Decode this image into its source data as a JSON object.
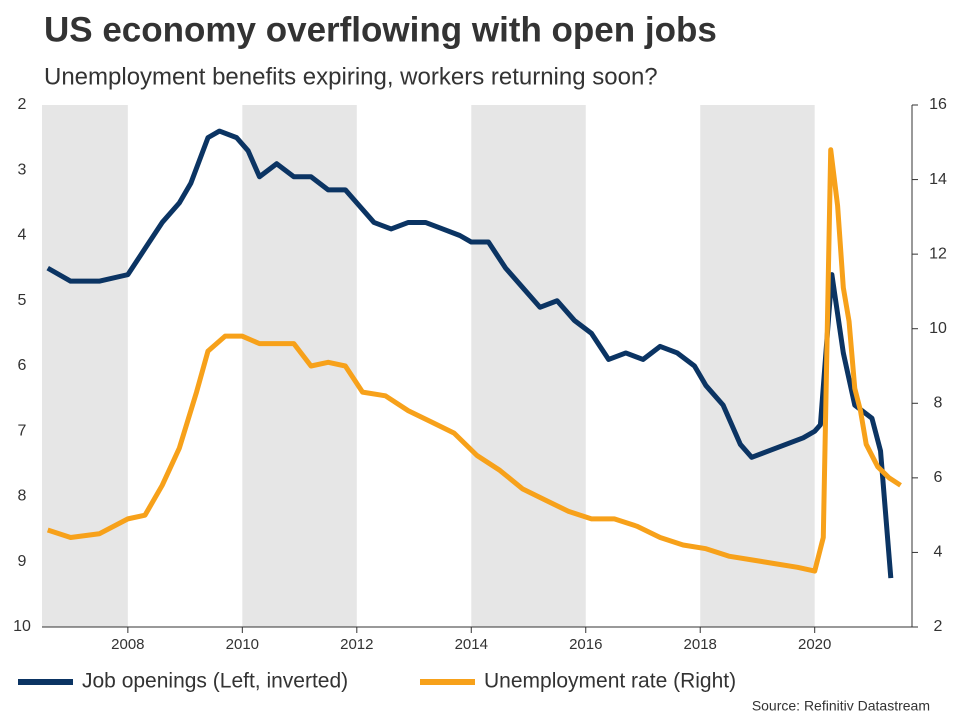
{
  "chart_data": {
    "type": "line",
    "title": "US economy overflowing with open jobs",
    "subtitle": "Unemployment benefits expiring, workers returning soon?",
    "source": "Source: Refinitiv Datastream",
    "xlim": [
      2006.5,
      2021.7
    ],
    "xticks": [
      2008,
      2010,
      2012,
      2014,
      2016,
      2018,
      2020
    ],
    "ylim": [
      10,
      2
    ],
    "yticks": [
      2,
      3,
      4,
      5,
      6,
      7,
      8,
      9,
      10
    ],
    "y2lim": [
      2,
      16
    ],
    "y2ticks": [
      2,
      4,
      6,
      8,
      10,
      12,
      14,
      16
    ],
    "series": [
      {
        "name": "Job openings (Left, inverted)",
        "color": "#0b3463",
        "axis": "y",
        "x": [
          2006.6,
          2007.0,
          2007.5,
          2008.0,
          2008.3,
          2008.6,
          2008.9,
          2009.1,
          2009.4,
          2009.6,
          2009.9,
          2010.1,
          2010.3,
          2010.6,
          2010.9,
          2011.2,
          2011.5,
          2011.8,
          2012.0,
          2012.3,
          2012.6,
          2012.9,
          2013.2,
          2013.5,
          2013.8,
          2014.0,
          2014.3,
          2014.6,
          2014.9,
          2015.2,
          2015.5,
          2015.8,
          2016.1,
          2016.4,
          2016.7,
          2017.0,
          2017.3,
          2017.6,
          2017.9,
          2018.1,
          2018.4,
          2018.7,
          2018.9,
          2019.2,
          2019.5,
          2019.8,
          2020.0,
          2020.1,
          2020.3,
          2020.5,
          2020.7,
          2021.0,
          2021.15,
          2021.33
        ],
        "values": [
          4.5,
          4.7,
          4.7,
          4.6,
          4.2,
          3.8,
          3.5,
          3.2,
          2.5,
          2.4,
          2.5,
          2.7,
          3.1,
          2.9,
          3.1,
          3.1,
          3.3,
          3.3,
          3.5,
          3.8,
          3.9,
          3.8,
          3.8,
          3.9,
          4.0,
          4.1,
          4.1,
          4.5,
          4.8,
          5.1,
          5.0,
          5.3,
          5.5,
          5.9,
          5.8,
          5.9,
          5.7,
          5.8,
          6.0,
          6.3,
          6.6,
          7.2,
          7.4,
          7.3,
          7.2,
          7.1,
          7.0,
          6.9,
          4.6,
          5.8,
          6.6,
          6.8,
          7.3,
          9.25
        ]
      },
      {
        "name": "Unemployment rate (Right)",
        "color": "#f7a11a",
        "axis": "y2",
        "x": [
          2006.6,
          2007.0,
          2007.5,
          2008.0,
          2008.3,
          2008.6,
          2008.9,
          2009.2,
          2009.4,
          2009.7,
          2010.0,
          2010.3,
          2010.6,
          2010.9,
          2011.2,
          2011.5,
          2011.8,
          2012.1,
          2012.5,
          2012.9,
          2013.3,
          2013.7,
          2014.1,
          2014.5,
          2014.9,
          2015.3,
          2015.7,
          2016.1,
          2016.5,
          2016.9,
          2017.3,
          2017.7,
          2018.1,
          2018.5,
          2018.9,
          2019.3,
          2019.7,
          2020.0,
          2020.15,
          2020.28,
          2020.4,
          2020.5,
          2020.6,
          2020.7,
          2020.8,
          2020.9,
          2021.1,
          2021.3,
          2021.5
        ],
        "values": [
          4.6,
          4.4,
          4.5,
          4.9,
          5.0,
          5.8,
          6.8,
          8.3,
          9.4,
          9.8,
          9.8,
          9.6,
          9.6,
          9.6,
          9.0,
          9.1,
          9.0,
          8.3,
          8.2,
          7.8,
          7.5,
          7.2,
          6.6,
          6.2,
          5.7,
          5.4,
          5.1,
          4.9,
          4.9,
          4.7,
          4.4,
          4.2,
          4.1,
          3.9,
          3.8,
          3.7,
          3.6,
          3.5,
          4.4,
          14.8,
          13.3,
          11.1,
          10.2,
          8.4,
          7.8,
          6.9,
          6.3,
          6.0,
          5.8
        ]
      }
    ]
  }
}
